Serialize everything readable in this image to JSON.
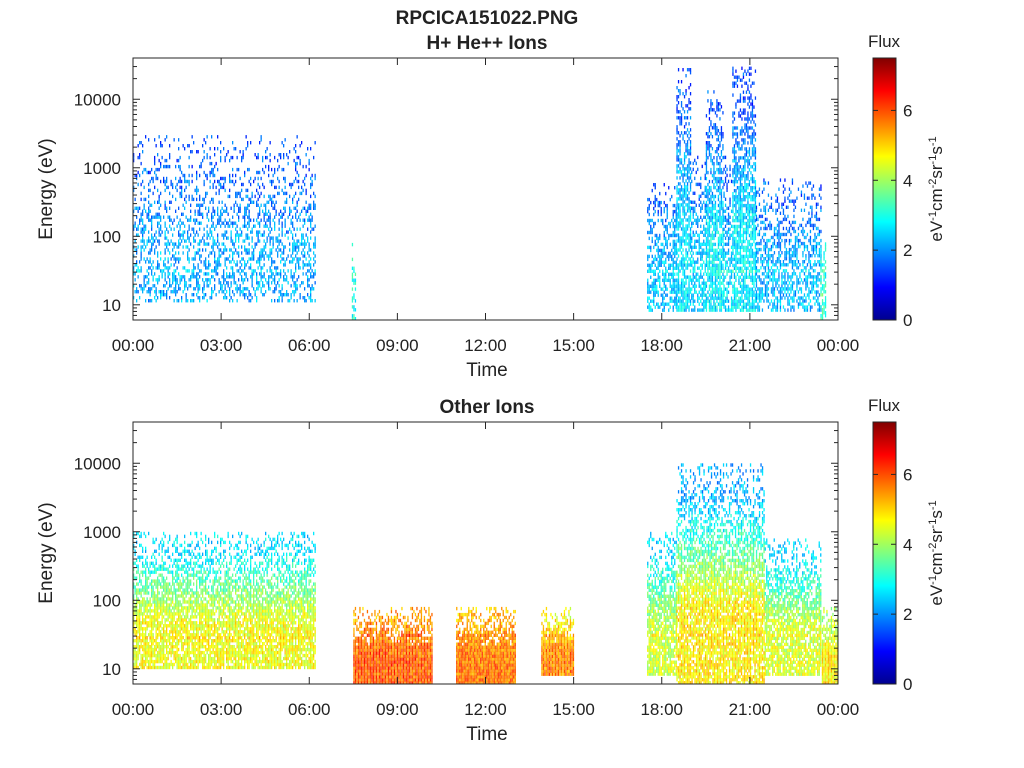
{
  "figure": {
    "title_line1": "RPCICA151022.PNG"
  },
  "chart_data": [
    {
      "type": "heatmap",
      "title": "H+ He++ Ions",
      "xlabel": "Time",
      "ylabel": "Energy (eV)",
      "x_tick_labels": [
        "00:00",
        "03:00",
        "06:00",
        "09:00",
        "12:00",
        "15:00",
        "18:00",
        "21:00",
        "00:00"
      ],
      "x_ticks_hours": [
        0,
        3,
        6,
        9,
        12,
        15,
        18,
        21,
        24
      ],
      "xlim_hours": [
        0,
        24
      ],
      "y_scale": "log",
      "ylim": [
        6,
        40000
      ],
      "y_ticks": [
        10,
        100,
        1000,
        10000
      ],
      "y_tick_labels": [
        "10",
        "100",
        "1000",
        "10000"
      ],
      "colorbar": {
        "label": "Flux",
        "units": "eV-1cm-2sr-1s-1",
        "range": [
          0,
          7.5
        ],
        "ticks": [
          0,
          2,
          4,
          6
        ],
        "tick_labels": [
          "0",
          "2",
          "4",
          "6"
        ],
        "colormap": "jet"
      },
      "blocks": [
        {
          "t_start": 0.0,
          "t_end": 6.2,
          "e_low": 11,
          "e_high": 3000,
          "flux_core": 2.2,
          "flux_edge": 1.5,
          "density": 0.35
        },
        {
          "t_start": 7.45,
          "t_end": 7.6,
          "e_low": 6,
          "e_high": 80,
          "flux_core": 3.0,
          "flux_edge": 3.0,
          "density": 0.5
        },
        {
          "t_start": 17.5,
          "t_end": 18.5,
          "e_low": 8,
          "e_high": 600,
          "flux_core": 2.4,
          "flux_edge": 1.6,
          "density": 0.55
        },
        {
          "t_start": 18.5,
          "t_end": 19.0,
          "e_low": 8,
          "e_high": 35000,
          "flux_core": 2.6,
          "flux_edge": 1.5,
          "density": 0.7
        },
        {
          "t_start": 19.0,
          "t_end": 19.5,
          "e_low": 8,
          "e_high": 1500,
          "flux_core": 2.5,
          "flux_edge": 1.6,
          "density": 0.55
        },
        {
          "t_start": 19.5,
          "t_end": 20.1,
          "e_low": 8,
          "e_high": 15000,
          "flux_core": 2.7,
          "flux_edge": 1.5,
          "density": 0.75
        },
        {
          "t_start": 20.1,
          "t_end": 20.4,
          "e_low": 8,
          "e_high": 1500,
          "flux_core": 2.5,
          "flux_edge": 1.6,
          "density": 0.55
        },
        {
          "t_start": 20.4,
          "t_end": 21.2,
          "e_low": 8,
          "e_high": 30000,
          "flux_core": 2.7,
          "flux_edge": 1.5,
          "density": 0.75
        },
        {
          "t_start": 21.2,
          "t_end": 23.4,
          "e_low": 8,
          "e_high": 700,
          "flux_core": 2.3,
          "flux_edge": 1.6,
          "density": 0.5
        },
        {
          "t_start": 23.4,
          "t_end": 23.6,
          "e_low": 6,
          "e_high": 100,
          "flux_core": 3.3,
          "flux_edge": 2.8,
          "density": 0.6
        }
      ]
    },
    {
      "type": "heatmap",
      "title": "Other Ions",
      "xlabel": "Time",
      "ylabel": "Energy (eV)",
      "x_tick_labels": [
        "00:00",
        "03:00",
        "06:00",
        "09:00",
        "12:00",
        "15:00",
        "18:00",
        "21:00",
        "00:00"
      ],
      "x_ticks_hours": [
        0,
        3,
        6,
        9,
        12,
        15,
        18,
        21,
        24
      ],
      "xlim_hours": [
        0,
        24
      ],
      "y_scale": "log",
      "ylim": [
        6,
        40000
      ],
      "y_ticks": [
        10,
        100,
        1000,
        10000
      ],
      "y_tick_labels": [
        "10",
        "100",
        "1000",
        "10000"
      ],
      "colorbar": {
        "label": "Flux",
        "units": "eV-1cm-2sr-1s-1",
        "range": [
          0,
          7.5
        ],
        "ticks": [
          0,
          2,
          4,
          6
        ],
        "tick_labels": [
          "0",
          "2",
          "4",
          "6"
        ],
        "colormap": "jet"
      },
      "blocks": [
        {
          "t_start": 0.0,
          "t_end": 6.2,
          "e_low": 10,
          "e_high": 1000,
          "flux_core": 4.6,
          "flux_edge": 2.6,
          "density": 0.8
        },
        {
          "t_start": 7.5,
          "t_end": 10.2,
          "e_low": 6,
          "e_high": 80,
          "flux_core": 5.9,
          "flux_edge": 5.4,
          "density": 1.0
        },
        {
          "t_start": 11.0,
          "t_end": 13.0,
          "e_low": 6,
          "e_high": 80,
          "flux_core": 5.7,
          "flux_edge": 5.2,
          "density": 1.0
        },
        {
          "t_start": 13.9,
          "t_end": 15.0,
          "e_low": 8,
          "e_high": 80,
          "flux_core": 5.6,
          "flux_edge": 4.6,
          "density": 1.0
        },
        {
          "t_start": 17.5,
          "t_end": 18.5,
          "e_low": 8,
          "e_high": 1000,
          "flux_core": 4.3,
          "flux_edge": 2.5,
          "density": 0.8
        },
        {
          "t_start": 18.5,
          "t_end": 21.5,
          "e_low": 6,
          "e_high": 10000,
          "flux_core": 4.8,
          "flux_edge": 2.2,
          "density": 0.8
        },
        {
          "t_start": 21.5,
          "t_end": 23.4,
          "e_low": 8,
          "e_high": 800,
          "flux_core": 4.4,
          "flux_edge": 2.5,
          "density": 0.8
        },
        {
          "t_start": 23.45,
          "t_end": 24.0,
          "e_low": 6,
          "e_high": 80,
          "flux_core": 4.8,
          "flux_edge": 4.0,
          "density": 1.0
        }
      ]
    }
  ]
}
